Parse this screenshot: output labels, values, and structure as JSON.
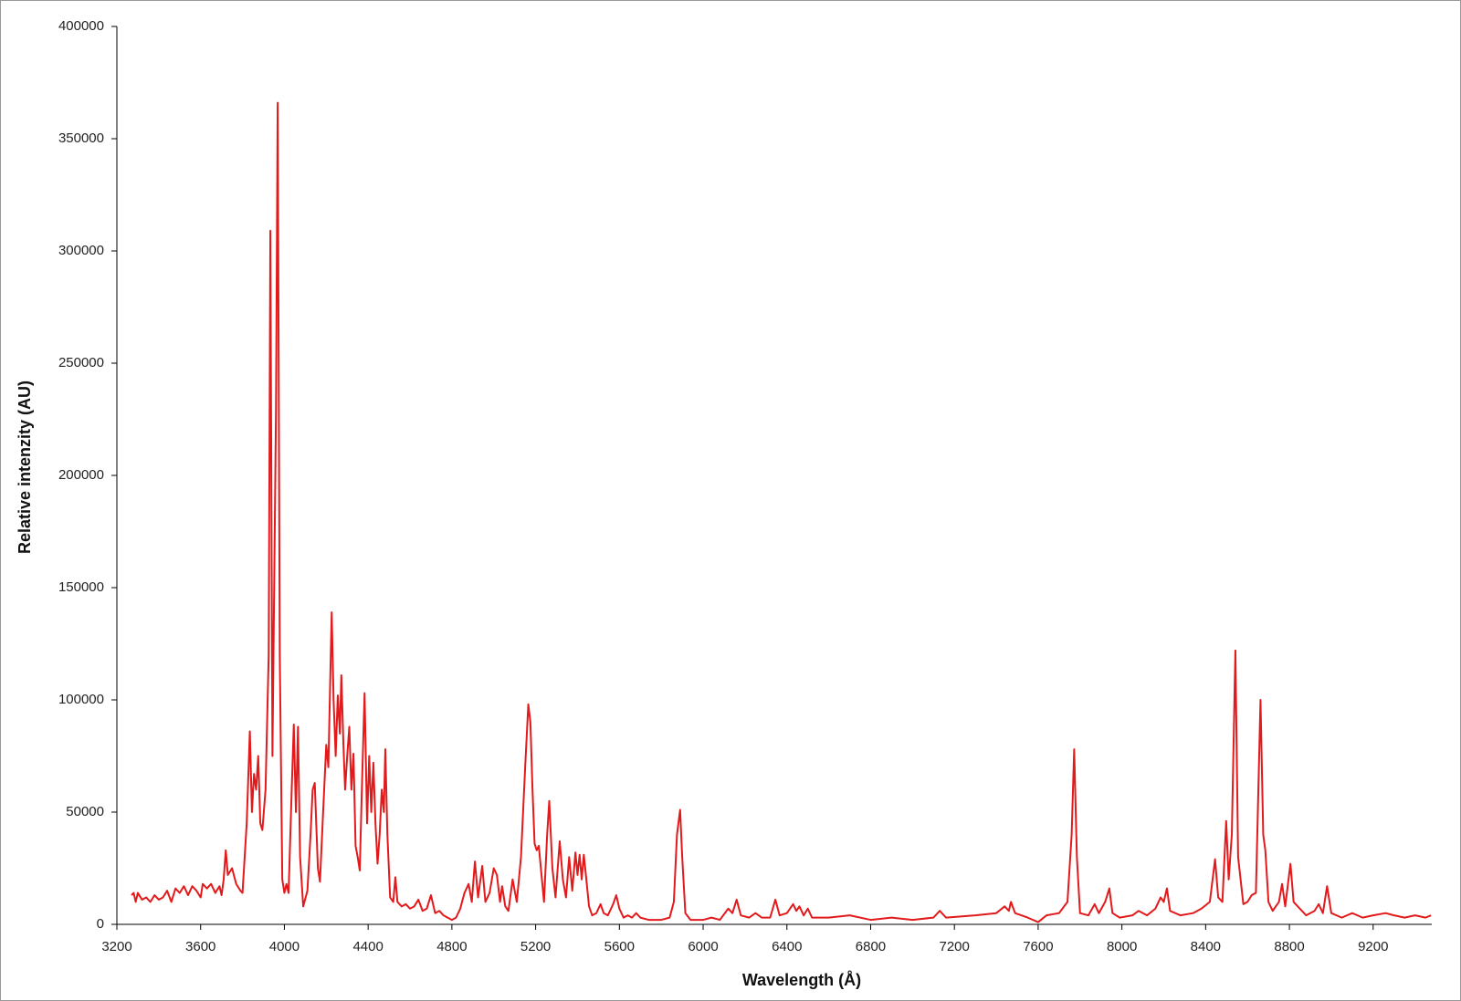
{
  "chart_data": {
    "type": "line",
    "x_label": "Wavelength (Å)",
    "y_label": "Relative intenzity (AU)",
    "xlim": [
      3200,
      9480
    ],
    "xticks": [
      3200,
      3600,
      4000,
      4400,
      4800,
      5200,
      5600,
      6000,
      6400,
      6800,
      7200,
      7600,
      8000,
      8400,
      8800,
      9200
    ],
    "ylim": [
      0,
      400000
    ],
    "yticks": [
      0,
      50000,
      100000,
      150000,
      200000,
      250000,
      300000,
      350000,
      400000
    ],
    "x": [
      3270,
      3280,
      3290,
      3300,
      3320,
      3340,
      3360,
      3380,
      3400,
      3420,
      3440,
      3460,
      3480,
      3500,
      3520,
      3540,
      3560,
      3580,
      3600,
      3610,
      3630,
      3650,
      3670,
      3690,
      3700,
      3710,
      3720,
      3730,
      3750,
      3770,
      3790,
      3800,
      3820,
      3835,
      3845,
      3855,
      3865,
      3875,
      3885,
      3895,
      3910,
      3925,
      3933,
      3943,
      3960,
      3968,
      3978,
      3990,
      4000,
      4010,
      4020,
      4035,
      4045,
      4055,
      4065,
      4075,
      4090,
      4110,
      4125,
      4135,
      4145,
      4160,
      4170,
      4185,
      4200,
      4210,
      4226,
      4235,
      4245,
      4255,
      4265,
      4272,
      4282,
      4290,
      4300,
      4310,
      4320,
      4330,
      4340,
      4350,
      4360,
      4370,
      4383,
      4395,
      4405,
      4415,
      4425,
      4435,
      4445,
      4455,
      4465,
      4475,
      4482,
      4492,
      4505,
      4520,
      4530,
      4540,
      4560,
      4580,
      4600,
      4620,
      4640,
      4660,
      4680,
      4700,
      4720,
      4740,
      4760,
      4780,
      4800,
      4820,
      4840,
      4860,
      4880,
      4895,
      4910,
      4925,
      4945,
      4960,
      4980,
      5000,
      5015,
      5030,
      5040,
      5055,
      5070,
      5090,
      5110,
      5130,
      5150,
      5165,
      5175,
      5185,
      5195,
      5205,
      5215,
      5225,
      5240,
      5255,
      5265,
      5280,
      5295,
      5315,
      5330,
      5345,
      5360,
      5375,
      5390,
      5400,
      5410,
      5420,
      5430,
      5440,
      5455,
      5470,
      5490,
      5510,
      5525,
      5545,
      5570,
      5585,
      5600,
      5620,
      5640,
      5660,
      5680,
      5700,
      5740,
      5800,
      5840,
      5860,
      5875,
      5890,
      5900,
      5915,
      5940,
      6000,
      6040,
      6080,
      6120,
      6140,
      6160,
      6180,
      6220,
      6250,
      6280,
      6320,
      6345,
      6365,
      6400,
      6430,
      6445,
      6460,
      6480,
      6500,
      6520,
      6600,
      6700,
      6800,
      6900,
      7000,
      7100,
      7130,
      7160,
      7300,
      7400,
      7440,
      7460,
      7470,
      7490,
      7550,
      7600,
      7640,
      7700,
      7740,
      7760,
      7772,
      7785,
      7800,
      7840,
      7870,
      7890,
      7920,
      7940,
      7955,
      7990,
      8050,
      8080,
      8120,
      8160,
      8185,
      8200,
      8215,
      8230,
      8280,
      8340,
      8380,
      8420,
      8445,
      8460,
      8480,
      8498,
      8510,
      8525,
      8542,
      8555,
      8580,
      8600,
      8620,
      8640,
      8662,
      8675,
      8685,
      8700,
      8720,
      8750,
      8765,
      8780,
      8805,
      8820,
      8850,
      8880,
      8920,
      8940,
      8960,
      8980,
      9000,
      9050,
      9100,
      9150,
      9200,
      9260,
      9300,
      9350,
      9400,
      9450,
      9476
    ],
    "series": [
      {
        "color": "#e31a1c",
        "values": [
          13000,
          14000,
          10000,
          14000,
          11000,
          12000,
          10000,
          13000,
          11000,
          12000,
          15000,
          10000,
          16000,
          14000,
          17000,
          13000,
          17000,
          15000,
          12000,
          18000,
          16000,
          18000,
          14000,
          17000,
          13000,
          20000,
          33000,
          22000,
          25000,
          18000,
          15000,
          14000,
          45000,
          86000,
          50000,
          67000,
          60000,
          75000,
          45000,
          42000,
          60000,
          120000,
          309000,
          75000,
          230000,
          366000,
          120000,
          20000,
          14000,
          18000,
          14000,
          60000,
          89000,
          50000,
          88000,
          30000,
          8000,
          15000,
          40000,
          60000,
          63000,
          25000,
          19000,
          50000,
          80000,
          70000,
          139000,
          100000,
          75000,
          102000,
          85000,
          111000,
          80000,
          60000,
          75000,
          88000,
          60000,
          76000,
          35000,
          30000,
          24000,
          60000,
          103000,
          45000,
          75000,
          50000,
          72000,
          45000,
          27000,
          40000,
          60000,
          50000,
          78000,
          40000,
          12000,
          10000,
          21000,
          10000,
          8000,
          9000,
          7000,
          8000,
          11000,
          6000,
          7000,
          13000,
          5000,
          6000,
          4000,
          3000,
          2000,
          3000,
          7000,
          14000,
          18000,
          10000,
          28000,
          12000,
          26000,
          10000,
          14000,
          25000,
          22000,
          10000,
          17000,
          8000,
          6000,
          20000,
          10000,
          30000,
          70000,
          98000,
          90000,
          60000,
          36000,
          33000,
          35000,
          25000,
          10000,
          40000,
          55000,
          25000,
          12000,
          37000,
          20000,
          12000,
          30000,
          15000,
          32000,
          22000,
          31000,
          20000,
          31000,
          22000,
          8000,
          4000,
          5000,
          9000,
          5000,
          4000,
          9000,
          13000,
          7000,
          3000,
          4000,
          3000,
          5000,
          3000,
          2000,
          2000,
          3000,
          10000,
          40000,
          51000,
          30000,
          5000,
          2000,
          2000,
          3000,
          2000,
          7000,
          5000,
          11000,
          4000,
          3000,
          5000,
          3000,
          3000,
          11000,
          4000,
          5000,
          9000,
          6000,
          8000,
          4000,
          7000,
          3000,
          3000,
          4000,
          2000,
          3000,
          2000,
          3000,
          6000,
          3000,
          4000,
          5000,
          8000,
          6000,
          10000,
          5000,
          3000,
          1000,
          4000,
          5000,
          10000,
          40000,
          78000,
          30000,
          5000,
          4000,
          9000,
          5000,
          10000,
          16000,
          5000,
          3000,
          4000,
          6000,
          4000,
          7000,
          12000,
          10000,
          16000,
          6000,
          4000,
          5000,
          7000,
          10000,
          29000,
          12000,
          10000,
          46000,
          20000,
          40000,
          122000,
          30000,
          9000,
          10000,
          13000,
          14000,
          100000,
          40000,
          33000,
          10000,
          6000,
          10000,
          18000,
          8000,
          27000,
          10000,
          7000,
          4000,
          6000,
          9000,
          5000,
          17000,
          5000,
          3000,
          5000,
          3000,
          4000,
          5000,
          4000,
          3000,
          4000,
          3000,
          4000
        ]
      }
    ]
  }
}
